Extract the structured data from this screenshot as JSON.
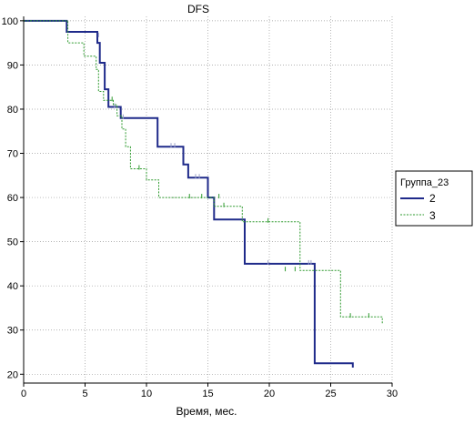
{
  "chart_data": {
    "type": "line",
    "subtype": "step",
    "title": "DFS",
    "xlabel": "Время, мес.",
    "ylabel": "",
    "xlim": [
      0,
      30
    ],
    "ylim": [
      18,
      101
    ],
    "xticks": [
      0,
      5,
      10,
      15,
      20,
      25,
      30
    ],
    "yticks": [
      20,
      30,
      40,
      50,
      60,
      70,
      80,
      90,
      100
    ],
    "grid": true,
    "legend": {
      "title": "Группа_23",
      "position": "right"
    },
    "series": [
      {
        "name": "2",
        "color": "#1f2a8a",
        "style": "solid",
        "points": [
          [
            0,
            100
          ],
          [
            3.5,
            100
          ],
          [
            3.5,
            97.5
          ],
          [
            6,
            97.5
          ],
          [
            6,
            95
          ],
          [
            6.2,
            95
          ],
          [
            6.2,
            90.5
          ],
          [
            6.6,
            90.5
          ],
          [
            6.6,
            84.5
          ],
          [
            6.9,
            84.5
          ],
          [
            6.9,
            80.5
          ],
          [
            7.9,
            80.5
          ],
          [
            7.9,
            78
          ],
          [
            10.9,
            78
          ],
          [
            10.9,
            71.5
          ],
          [
            13,
            71.5
          ],
          [
            13,
            67.5
          ],
          [
            13.4,
            67.5
          ],
          [
            13.4,
            64.5
          ],
          [
            15,
            64.5
          ],
          [
            15,
            60
          ],
          [
            15.5,
            60
          ],
          [
            15.5,
            55
          ],
          [
            18,
            55
          ],
          [
            18,
            45
          ],
          [
            23.7,
            45
          ],
          [
            23.7,
            22.5
          ],
          [
            26.8,
            22.5
          ],
          [
            26.8,
            21.5
          ]
        ],
        "censored": [
          [
            6.1,
            96.5
          ],
          [
            7.4,
            80.5
          ],
          [
            8.1,
            78
          ],
          [
            12,
            71.5
          ],
          [
            12.3,
            71.5
          ],
          [
            14,
            64.5
          ],
          [
            14.3,
            64.5
          ],
          [
            19.9,
            45
          ],
          [
            23.2,
            45
          ],
          [
            23.4,
            45
          ]
        ]
      },
      {
        "name": "3",
        "color": "#2e9a2e",
        "style": "dashed",
        "points": [
          [
            0,
            100
          ],
          [
            3.6,
            100
          ],
          [
            3.6,
            95
          ],
          [
            4.9,
            95
          ],
          [
            4.9,
            92
          ],
          [
            5.9,
            92
          ],
          [
            5.9,
            89
          ],
          [
            6.1,
            89
          ],
          [
            6.1,
            84
          ],
          [
            6.5,
            84
          ],
          [
            6.5,
            82
          ],
          [
            7.3,
            82
          ],
          [
            7.3,
            81
          ],
          [
            7.6,
            81
          ],
          [
            7.6,
            78.5
          ],
          [
            8,
            78.5
          ],
          [
            8,
            75.5
          ],
          [
            8.3,
            75.5
          ],
          [
            8.3,
            71.5
          ],
          [
            8.7,
            71.5
          ],
          [
            8.7,
            66.5
          ],
          [
            10,
            66.5
          ],
          [
            10,
            64
          ],
          [
            11,
            64
          ],
          [
            11,
            60
          ],
          [
            15.5,
            60
          ],
          [
            15.5,
            58
          ],
          [
            17.8,
            58
          ],
          [
            17.8,
            54.5
          ],
          [
            22.5,
            54.5
          ],
          [
            22.5,
            43.5
          ],
          [
            25.8,
            43.5
          ],
          [
            25.8,
            33
          ],
          [
            29.2,
            33
          ],
          [
            29.2,
            31.5
          ]
        ],
        "censored": [
          [
            7.2,
            82
          ],
          [
            9.4,
            66.5
          ],
          [
            13.5,
            60
          ],
          [
            14.5,
            60
          ],
          [
            15.9,
            60
          ],
          [
            16.3,
            58
          ],
          [
            19.9,
            54.5
          ],
          [
            21.3,
            43.5
          ],
          [
            22.1,
            43.5
          ],
          [
            26.6,
            33
          ],
          [
            28.1,
            33
          ]
        ]
      }
    ]
  }
}
